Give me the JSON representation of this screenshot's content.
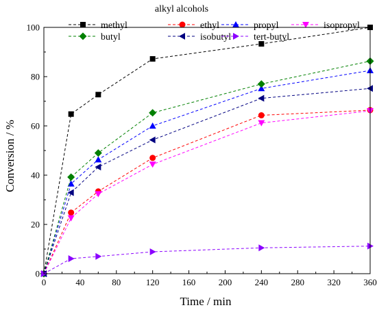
{
  "chart_data": {
    "type": "line",
    "xlabel": "Time / min",
    "ylabel": "Conversion / %",
    "xlim": [
      0,
      360
    ],
    "ylim": [
      0,
      100
    ],
    "xticks": [
      0,
      40,
      80,
      120,
      160,
      200,
      240,
      280,
      320,
      360
    ],
    "yticks": [
      0,
      20,
      40,
      60,
      80,
      100
    ],
    "grid": false,
    "legend_title": "alkyl alcohols",
    "legend_position": "top",
    "series": [
      {
        "name": "methyl",
        "color": "#000000",
        "marker": "square",
        "x": [
          0,
          30,
          60,
          120,
          240,
          360
        ],
        "y": [
          0,
          64.8,
          72.7,
          87.2,
          93.3,
          100
        ]
      },
      {
        "name": "ethyl",
        "color": "#ff0000",
        "marker": "circle",
        "x": [
          0,
          30,
          60,
          120,
          240,
          360
        ],
        "y": [
          0,
          24.8,
          33.4,
          47.0,
          64.3,
          66.4
        ]
      },
      {
        "name": "propyl",
        "color": "#0000ff",
        "marker": "triangle-up",
        "x": [
          0,
          30,
          60,
          120,
          240,
          360
        ],
        "y": [
          0,
          36.5,
          46.3,
          60.0,
          75.2,
          82.5
        ]
      },
      {
        "name": "isopropyl",
        "color": "#ff00ff",
        "marker": "triangle-down",
        "x": [
          0,
          30,
          60,
          120,
          240,
          360
        ],
        "y": [
          0,
          22.6,
          32.4,
          44.4,
          61.2,
          66.1
        ]
      },
      {
        "name": "butyl",
        "color": "#008000",
        "marker": "diamond",
        "x": [
          0,
          30,
          60,
          120,
          240,
          360
        ],
        "y": [
          0,
          39.2,
          49.0,
          65.3,
          77.0,
          86.3
        ]
      },
      {
        "name": "isobutyl",
        "color": "#000080",
        "marker": "triangle-left",
        "x": [
          0,
          30,
          60,
          120,
          240,
          360
        ],
        "y": [
          0,
          32.9,
          43.3,
          54.3,
          71.2,
          75.2
        ]
      },
      {
        "name": "tert-butyl",
        "color": "#8b00ff",
        "marker": "triangle-right",
        "x": [
          0,
          30,
          60,
          120,
          240,
          360
        ],
        "y": [
          0,
          6.1,
          7.0,
          8.9,
          10.5,
          11.2
        ]
      }
    ]
  }
}
